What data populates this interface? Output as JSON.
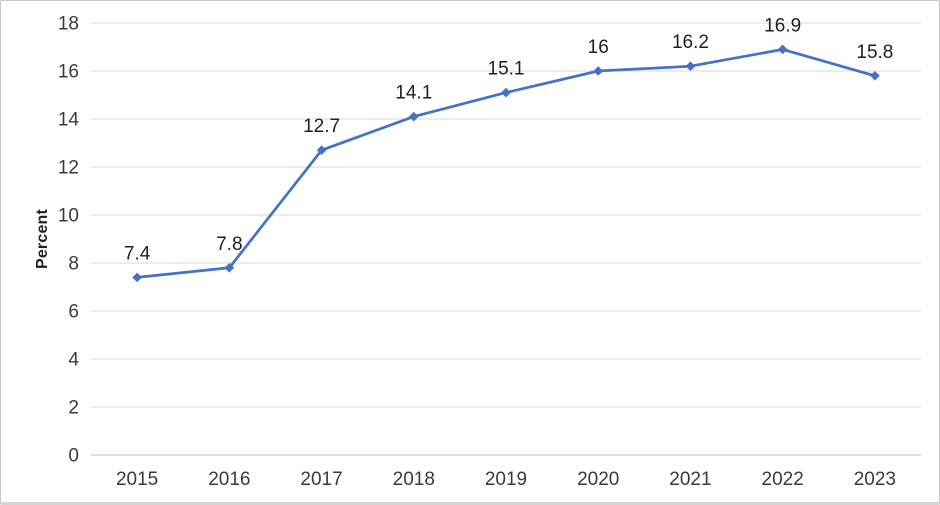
{
  "chart_data": {
    "type": "line",
    "title": "",
    "xlabel": "",
    "ylabel": "Percent",
    "categories": [
      "2015",
      "2016",
      "2017",
      "2018",
      "2019",
      "2020",
      "2021",
      "2022",
      "2023"
    ],
    "series": [
      {
        "name": "Percent",
        "values": [
          7.4,
          7.8,
          12.7,
          14.1,
          15.1,
          16,
          16.2,
          16.9,
          15.8
        ],
        "data_labels": [
          "7.4",
          "7.8",
          "12.7",
          "14.1",
          "15.1",
          "16",
          "16.2",
          "16.9",
          "15.8"
        ],
        "color": "#4472C4",
        "marker": "diamond"
      }
    ],
    "ylim": [
      0,
      18
    ],
    "ytick_step": 2,
    "ytick_labels": [
      "0",
      "2",
      "4",
      "6",
      "8",
      "10",
      "12",
      "14",
      "16",
      "18"
    ],
    "grid": "horizontal-only",
    "legend": "none",
    "colors": {
      "gridline": "#D9D9D9",
      "axis_baseline": "#BFBFBF",
      "tick_text": "#3A3A3A",
      "data_label_text": "#1F1F1F",
      "frame_border": "#C6C6C6"
    }
  }
}
